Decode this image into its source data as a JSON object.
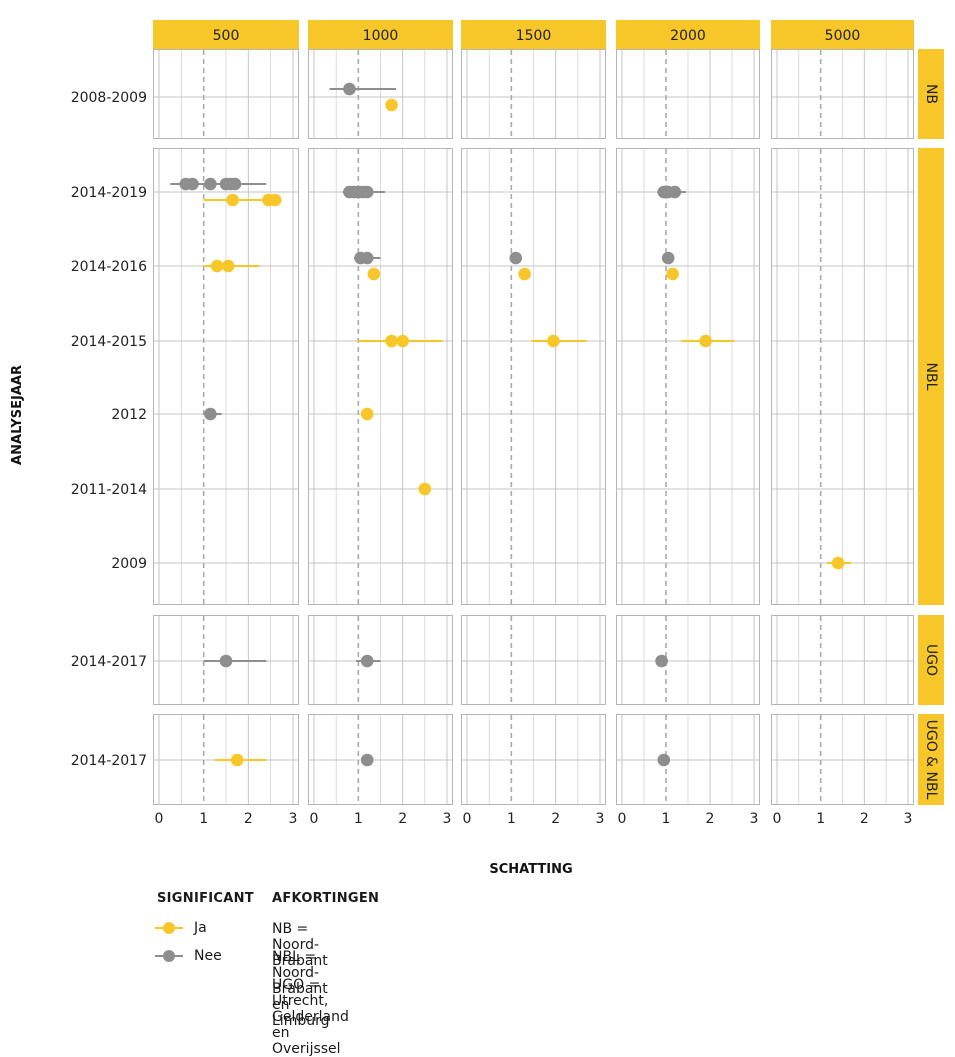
{
  "chart_data": {
    "type": "scatter",
    "subtype": "faceted dot-and-interval plot",
    "xlabel": "SCHATTING",
    "ylabel": "ANALYSEJAAR",
    "xlim": [
      0,
      3
    ],
    "xticks": [
      0,
      1,
      2,
      3
    ],
    "reference_line_x": 1,
    "columns": [
      "500",
      "1000",
      "1500",
      "2000",
      "5000"
    ],
    "rows": [
      {
        "name": "NB",
        "years": [
          "2008-2009"
        ]
      },
      {
        "name": "NBL",
        "years": [
          "2014-2019",
          "2014-2016",
          "2014-2015",
          "2012",
          "2011-2014",
          "2009"
        ]
      },
      {
        "name": "UGO",
        "years": [
          "2014-2017"
        ]
      },
      {
        "name": "UGO & NBL",
        "years": [
          "2014-2017"
        ]
      }
    ],
    "series": [
      {
        "name": "Ja",
        "color": "#f7c72a"
      },
      {
        "name": "Nee",
        "color": "#8e8e8e"
      }
    ],
    "intervals": [
      {
        "row": "NB",
        "col": "1000",
        "year": "2008-2009",
        "sig": "Nee",
        "lo": 0.35,
        "hi": 1.85,
        "points": [
          0.8
        ]
      },
      {
        "row": "NB",
        "col": "1000",
        "year": "2008-2009",
        "sig": "Ja",
        "lo": null,
        "hi": null,
        "points": [
          1.75
        ]
      },
      {
        "row": "NBL",
        "col": "500",
        "year": "2014-2019",
        "sig": "Nee",
        "lo": 0.25,
        "hi": 2.4,
        "points": [
          0.6,
          0.75,
          1.15,
          1.5,
          1.6,
          1.7
        ]
      },
      {
        "row": "NBL",
        "col": "500",
        "year": "2014-2019",
        "sig": "Ja",
        "lo": 1.0,
        "hi": 2.7,
        "points": [
          1.65,
          2.45,
          2.6
        ]
      },
      {
        "row": "NBL",
        "col": "500",
        "year": "2014-2016",
        "sig": "Ja",
        "lo": 1.0,
        "hi": 2.25,
        "points": [
          1.3,
          1.55
        ]
      },
      {
        "row": "NBL",
        "col": "500",
        "year": "2012",
        "sig": "Nee",
        "lo": 1.0,
        "hi": 1.4,
        "points": [
          1.15
        ]
      },
      {
        "row": "NBL",
        "col": "1000",
        "year": "2014-2019",
        "sig": "Nee",
        "lo": 0.65,
        "hi": 1.6,
        "points": [
          0.8,
          0.9,
          1.0,
          1.1,
          1.2
        ]
      },
      {
        "row": "NBL",
        "col": "1000",
        "year": "2014-2016",
        "sig": "Nee",
        "lo": 0.9,
        "hi": 1.5,
        "points": [
          1.05,
          1.2
        ]
      },
      {
        "row": "NBL",
        "col": "1000",
        "year": "2014-2016",
        "sig": "Ja",
        "lo": null,
        "hi": null,
        "points": [
          1.35
        ]
      },
      {
        "row": "NBL",
        "col": "1000",
        "year": "2014-2015",
        "sig": "Ja",
        "lo": 1.0,
        "hi": 2.9,
        "points": [
          1.75,
          2.0
        ]
      },
      {
        "row": "NBL",
        "col": "1000",
        "year": "2012",
        "sig": "Ja",
        "lo": null,
        "hi": null,
        "points": [
          1.2
        ]
      },
      {
        "row": "NBL",
        "col": "1000",
        "year": "2011-2014",
        "sig": "Ja",
        "lo": null,
        "hi": null,
        "points": [
          2.5
        ]
      },
      {
        "row": "NBL",
        "col": "1500",
        "year": "2014-2016",
        "sig": "Nee",
        "lo": null,
        "hi": null,
        "points": [
          1.1
        ]
      },
      {
        "row": "NBL",
        "col": "1500",
        "year": "2014-2016",
        "sig": "Ja",
        "lo": null,
        "hi": null,
        "points": [
          1.3
        ]
      },
      {
        "row": "NBL",
        "col": "1500",
        "year": "2014-2015",
        "sig": "Ja",
        "lo": 1.45,
        "hi": 2.7,
        "points": [
          1.95
        ]
      },
      {
        "row": "NBL",
        "col": "2000",
        "year": "2014-2019",
        "sig": "Nee",
        "lo": 0.8,
        "hi": 1.45,
        "points": [
          0.95,
          1.05,
          1.2
        ]
      },
      {
        "row": "NBL",
        "col": "2000",
        "year": "2014-2016",
        "sig": "Nee",
        "lo": null,
        "hi": null,
        "points": [
          1.05
        ]
      },
      {
        "row": "NBL",
        "col": "2000",
        "year": "2014-2016",
        "sig": "Ja",
        "lo": null,
        "hi": null,
        "points": [
          1.15
        ]
      },
      {
        "row": "NBL",
        "col": "2000",
        "year": "2014-2015",
        "sig": "Ja",
        "lo": 1.35,
        "hi": 2.55,
        "points": [
          1.9
        ]
      },
      {
        "row": "NBL",
        "col": "5000",
        "year": "2009",
        "sig": "Ja",
        "lo": 1.15,
        "hi": 1.7,
        "points": [
          1.4
        ]
      },
      {
        "row": "UGO",
        "col": "500",
        "year": "2014-2017",
        "sig": "Nee",
        "lo": 1.0,
        "hi": 2.4,
        "points": [
          1.5
        ]
      },
      {
        "row": "UGO",
        "col": "1000",
        "year": "2014-2017",
        "sig": "Nee",
        "lo": 0.95,
        "hi": 1.5,
        "points": [
          1.2
        ]
      },
      {
        "row": "UGO",
        "col": "2000",
        "year": "2014-2017",
        "sig": "Nee",
        "lo": null,
        "hi": null,
        "points": [
          0.9
        ]
      },
      {
        "row": "UGO & NBL",
        "col": "500",
        "year": "2014-2017",
        "sig": "Ja",
        "lo": 1.25,
        "hi": 2.4,
        "points": [
          1.75
        ]
      },
      {
        "row": "UGO & NBL",
        "col": "1000",
        "year": "2014-2017",
        "sig": "Nee",
        "lo": null,
        "hi": null,
        "points": [
          1.2
        ]
      },
      {
        "row": "UGO & NBL",
        "col": "2000",
        "year": "2014-2017",
        "sig": "Nee",
        "lo": null,
        "hi": null,
        "points": [
          0.95
        ]
      }
    ],
    "grid": true,
    "legend_position": "bottom-left"
  },
  "legend": {
    "significant_title": "SIGNIFICANT",
    "items": [
      {
        "label": "Ja",
        "color": "#f7c72a"
      },
      {
        "label": "Nee",
        "color": "#8e8e8e"
      }
    ],
    "abbr_title": "AFKORTINGEN",
    "abbreviations": [
      "NB = Noord-Brabant",
      "NBL = Noord-Brabant en Limburg",
      "UGO = Utrecht, Gelderland en Overijssel"
    ]
  },
  "colors": {
    "strip": "#f7c72a",
    "grid": "#c4c4c4",
    "panel_border": "#b5b5b5",
    "reference_line": "#aaaaaa"
  }
}
